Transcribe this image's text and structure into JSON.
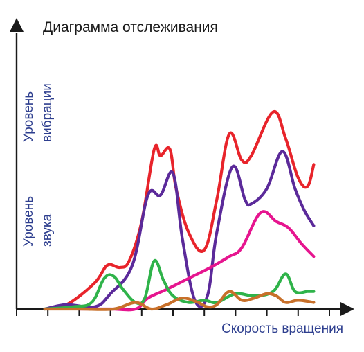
{
  "chart_data": {
    "type": "line",
    "title": "Диаграмма отслеживания",
    "xlabel": "Скорость вращения",
    "ylabels": [
      [
        "Уровень",
        "вибрации"
      ],
      [
        "Уровень",
        "звука"
      ]
    ],
    "xlim": [
      0,
      100
    ],
    "ylim": [
      0,
      100
    ],
    "grid": false,
    "x_ticks": 11,
    "colors": {
      "axis": "#1a1a1a",
      "title_text": "#1a1a1a",
      "label_text": "#2e3f8f"
    },
    "series": [
      {
        "color": "#e8242b",
        "points": [
          [
            9,
            0
          ],
          [
            16,
            2
          ],
          [
            25,
            12
          ],
          [
            29,
            20
          ],
          [
            33,
            19
          ],
          [
            36,
            22
          ],
          [
            40,
            40
          ],
          [
            44,
            73
          ],
          [
            46,
            70
          ],
          [
            49,
            73
          ],
          [
            51,
            55
          ],
          [
            55,
            35
          ],
          [
            60,
            27
          ],
          [
            64,
            50
          ],
          [
            68,
            80
          ],
          [
            72,
            68
          ],
          [
            75,
            70
          ],
          [
            82,
            90
          ],
          [
            86,
            78
          ],
          [
            90,
            60
          ],
          [
            93,
            56
          ],
          [
            95,
            66
          ]
        ]
      },
      {
        "color": "#5b2a9a",
        "points": [
          [
            9,
            0
          ],
          [
            16,
            2
          ],
          [
            25,
            1
          ],
          [
            30,
            7
          ],
          [
            37,
            20
          ],
          [
            42,
            52
          ],
          [
            46,
            52
          ],
          [
            50,
            62
          ],
          [
            53,
            32
          ],
          [
            57,
            4
          ],
          [
            61,
            6
          ],
          [
            64,
            35
          ],
          [
            69,
            65
          ],
          [
            73,
            50
          ],
          [
            75,
            48
          ],
          [
            80,
            55
          ],
          [
            85,
            72
          ],
          [
            89,
            55
          ],
          [
            92,
            45
          ],
          [
            95,
            38
          ]
        ]
      },
      {
        "color": "#e6158f",
        "points": [
          [
            20,
            0
          ],
          [
            30,
            0
          ],
          [
            38,
            0
          ],
          [
            42,
            5
          ],
          [
            48,
            9
          ],
          [
            55,
            14
          ],
          [
            62,
            19
          ],
          [
            68,
            24
          ],
          [
            72,
            28
          ],
          [
            78,
            44
          ],
          [
            83,
            40
          ],
          [
            87,
            37
          ],
          [
            91,
            30
          ],
          [
            95,
            24
          ]
        ]
      },
      {
        "color": "#2fb34a",
        "points": [
          [
            9,
            0
          ],
          [
            18,
            1
          ],
          [
            24,
            3
          ],
          [
            28,
            14
          ],
          [
            31,
            15
          ],
          [
            34,
            9
          ],
          [
            38,
            3
          ],
          [
            41,
            5
          ],
          [
            44,
            22
          ],
          [
            47,
            13
          ],
          [
            50,
            6
          ],
          [
            55,
            3
          ],
          [
            60,
            4
          ],
          [
            64,
            3
          ],
          [
            70,
            7
          ],
          [
            76,
            6
          ],
          [
            82,
            8
          ],
          [
            86,
            16
          ],
          [
            89,
            8
          ],
          [
            93,
            8
          ],
          [
            95,
            8
          ]
        ]
      },
      {
        "color": "#c8702a",
        "points": [
          [
            9,
            0
          ],
          [
            20,
            0
          ],
          [
            31,
            0
          ],
          [
            38,
            3
          ],
          [
            43,
            0
          ],
          [
            48,
            2
          ],
          [
            53,
            5
          ],
          [
            58,
            3
          ],
          [
            61,
            1
          ],
          [
            64,
            2
          ],
          [
            68,
            8
          ],
          [
            72,
            4
          ],
          [
            76,
            5
          ],
          [
            80,
            7
          ],
          [
            83,
            6
          ],
          [
            86,
            3
          ],
          [
            90,
            4
          ],
          [
            95,
            3
          ]
        ]
      }
    ]
  }
}
